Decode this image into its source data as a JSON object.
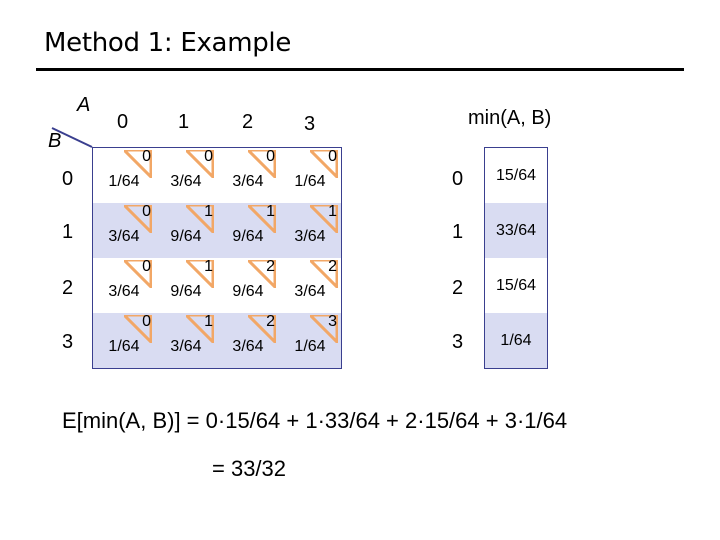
{
  "slide": {
    "title": "Method 1: Example"
  },
  "axes": {
    "a_label": "A",
    "b_label": "B",
    "a_values": [
      "0",
      "1",
      "2",
      "3"
    ],
    "b_values": [
      "0",
      "1",
      "2",
      "3"
    ]
  },
  "joint_table": {
    "rows": [
      {
        "cells": [
          {
            "prob": "1/64",
            "min": "0"
          },
          {
            "prob": "3/64",
            "min": "0"
          },
          {
            "prob": "3/64",
            "min": "0"
          },
          {
            "prob": "1/64",
            "min": "0"
          }
        ]
      },
      {
        "cells": [
          {
            "prob": "3/64",
            "min": "0"
          },
          {
            "prob": "9/64",
            "min": "1"
          },
          {
            "prob": "9/64",
            "min": "1"
          },
          {
            "prob": "3/64",
            "min": "1"
          }
        ]
      },
      {
        "cells": [
          {
            "prob": "3/64",
            "min": "0"
          },
          {
            "prob": "9/64",
            "min": "1"
          },
          {
            "prob": "9/64",
            "min": "2"
          },
          {
            "prob": "3/64",
            "min": "2"
          }
        ]
      },
      {
        "cells": [
          {
            "prob": "1/64",
            "min": "0"
          },
          {
            "prob": "3/64",
            "min": "1"
          },
          {
            "prob": "3/64",
            "min": "2"
          },
          {
            "prob": "1/64",
            "min": "3"
          }
        ]
      }
    ]
  },
  "min_table": {
    "header": "min(A, B)",
    "rows": [
      {
        "value": "0",
        "prob": "15/64"
      },
      {
        "value": "1",
        "prob": "33/64"
      },
      {
        "value": "2",
        "prob": "15/64"
      },
      {
        "value": "3",
        "prob": "1/64"
      }
    ]
  },
  "expectation": {
    "line1": "E[min(A, B)] = 0·15/64 + 1·33/64 + 2·15/64 + 3·1/64",
    "line2": "= 33/32"
  },
  "colors": {
    "shade": "#d9dcf2",
    "grid_border": "#3a3f8f",
    "triangle": "#f2a766",
    "diagonal": "#3a3f8f"
  }
}
